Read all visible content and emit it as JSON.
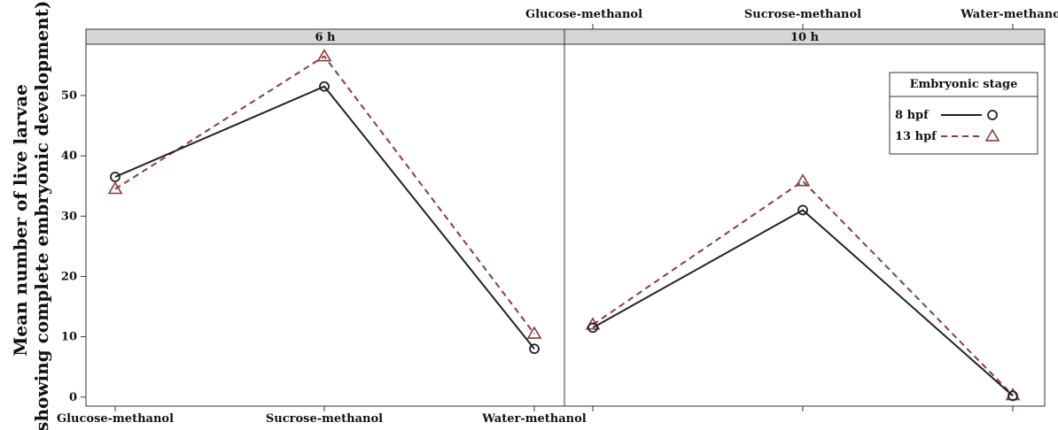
{
  "chart_data": {
    "type": "line",
    "ylabel_line1": "Mean number of live larvae",
    "ylabel_line2": "(showing complete embryonic development)",
    "categories": [
      "Glucose-methanol",
      "Sucrose-methanol",
      "Water-methanol"
    ],
    "yticks": [
      "0",
      "10",
      "20",
      "30",
      "40",
      "50"
    ],
    "ylim": [
      -1.5,
      58.5
    ],
    "grid": false,
    "legend": {
      "title": "Embryonic stage",
      "placement": "top-right",
      "entries": [
        {
          "label": "8 hpf",
          "color": "#222222",
          "dash": "solid",
          "marker": "circle"
        },
        {
          "label": "13 hpf",
          "color": "#8a3b3b",
          "dash": "dashed",
          "marker": "triangle"
        }
      ]
    },
    "panels": [
      {
        "strip": "6 h",
        "series": [
          {
            "name": "8 hpf",
            "values": [
              36.5,
              51.5,
              8.0
            ]
          },
          {
            "name": "13 hpf",
            "values": [
              34.5,
              56.5,
              10.5
            ]
          }
        ]
      },
      {
        "strip": "10 h",
        "series": [
          {
            "name": "8 hpf",
            "values": [
              11.5,
              31.0,
              0.2
            ]
          },
          {
            "name": "13 hpf",
            "values": [
              12.0,
              35.8,
              0.3
            ]
          }
        ]
      }
    ]
  }
}
